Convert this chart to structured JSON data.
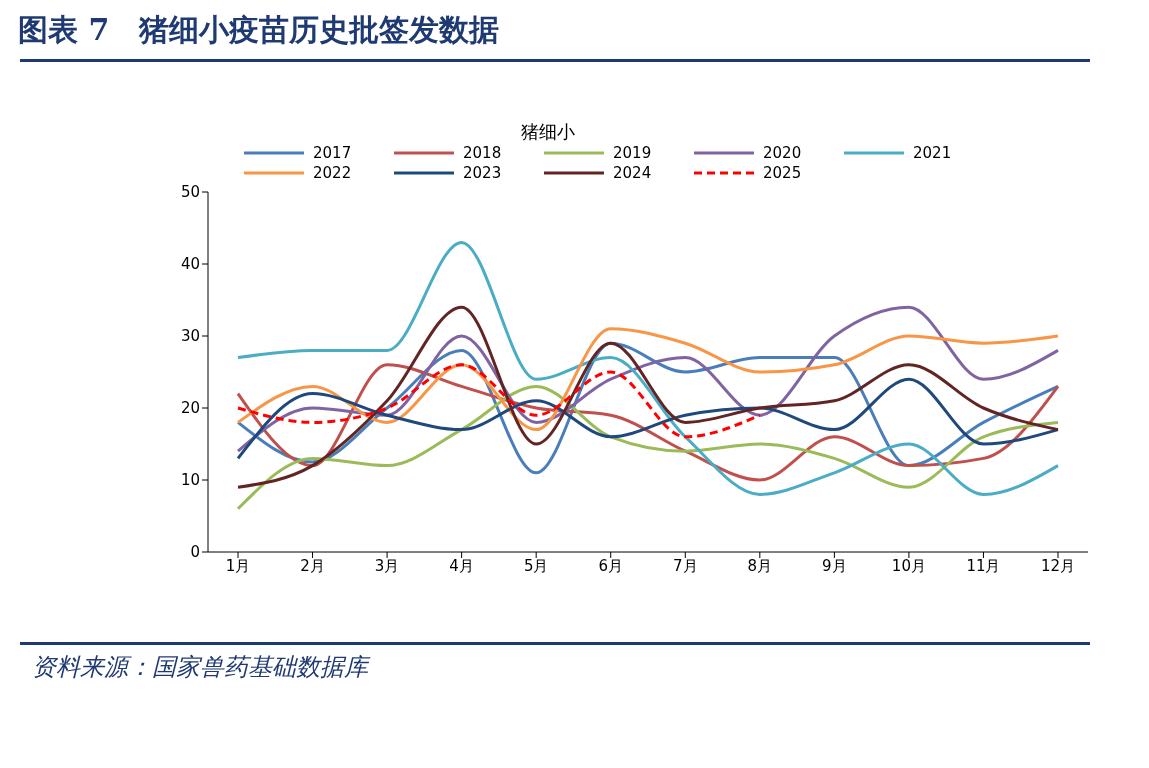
{
  "chart_data": {
    "type": "line",
    "title": "图表 7　猪细小疫苗历史批签发数据",
    "subtitle": "猪细小",
    "annotations": [
      "资料来源：国家兽药基础数据库"
    ],
    "categories": [
      "1月",
      "2月",
      "3月",
      "4月",
      "5月",
      "6月",
      "7月",
      "8月",
      "9月",
      "10月",
      "11月",
      "12月"
    ],
    "ylim": [
      0,
      50
    ],
    "yticks": [
      0,
      10,
      20,
      30,
      40,
      50
    ],
    "grid": false,
    "legend": "top",
    "marker": "none",
    "series": [
      {
        "name": "2017",
        "color": "#4a7ebb",
        "values": [
          18,
          12.5,
          20,
          28,
          11,
          29,
          25,
          27,
          27,
          12,
          18,
          23
        ]
      },
      {
        "name": "2018",
        "color": "#c0504d",
        "values": [
          22,
          12,
          26,
          23,
          20,
          19,
          14,
          10,
          16,
          12,
          13,
          23
        ]
      },
      {
        "name": "2019",
        "color": "#9bbb59",
        "values": [
          6,
          13,
          12,
          17,
          23,
          16,
          14,
          15,
          13,
          9,
          16,
          18
        ]
      },
      {
        "name": "2020",
        "color": "#8064a2",
        "values": [
          14,
          20,
          19,
          30,
          18,
          24,
          27,
          19,
          30,
          34,
          24,
          28
        ]
      },
      {
        "name": "2021",
        "color": "#4bacc6",
        "values": [
          27,
          28,
          28,
          43,
          24,
          27,
          16,
          8,
          11,
          15,
          8,
          12
        ]
      },
      {
        "name": "2022",
        "color": "#f79646",
        "values": [
          18,
          23,
          18,
          26,
          17,
          31,
          29,
          25,
          26,
          30,
          29,
          30
        ]
      },
      {
        "name": "2023",
        "color": "#1f497d",
        "values": [
          13,
          22,
          19,
          17,
          21,
          16,
          19,
          20,
          17,
          24,
          15,
          17
        ]
      },
      {
        "name": "2024",
        "color": "#632523",
        "values": [
          9,
          12,
          21,
          34,
          15,
          29,
          18,
          20,
          21,
          26,
          20,
          17
        ]
      },
      {
        "name": "2025",
        "color": "#ff0000",
        "line_style": "dashed",
        "values": [
          20,
          18,
          20,
          26,
          19,
          25,
          16,
          19,
          null,
          null,
          null,
          null
        ]
      }
    ]
  }
}
